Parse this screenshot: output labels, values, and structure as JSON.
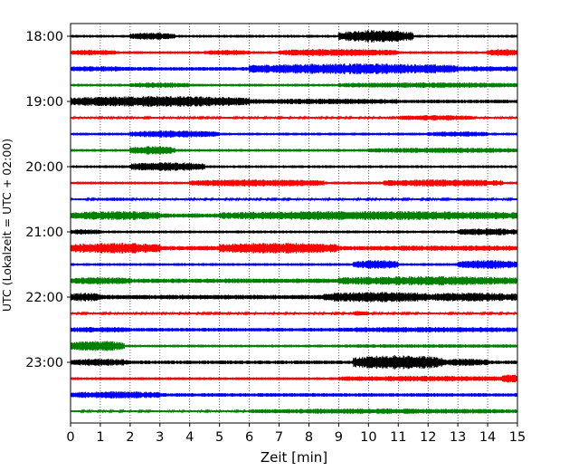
{
  "chart_data": {
    "type": "line",
    "xlabel": "Zeit  [min]",
    "ylabel": "UTC (Lokalzeit = UTC + 02:00)",
    "xlim": [
      0,
      15
    ],
    "x_ticks": [
      0,
      1,
      2,
      3,
      4,
      5,
      6,
      7,
      8,
      9,
      10,
      11,
      12,
      13,
      14,
      15
    ],
    "x_grid": true,
    "hour_labels": [
      {
        "label": "18:00",
        "trace": 0
      },
      {
        "label": "19:00",
        "trace": 4
      },
      {
        "label": "20:00",
        "trace": 8
      },
      {
        "label": "21:00",
        "trace": 12
      },
      {
        "label": "22:00",
        "trace": 16
      },
      {
        "label": "23:00",
        "trace": 20
      }
    ],
    "traces_per_hour": 4,
    "minutes_per_trace": 15,
    "series_colors": [
      "#000000",
      "#ff0000",
      "#0000ff",
      "#008000"
    ],
    "traces": [
      {
        "start": "18:00",
        "color": "#000000",
        "base": 1.5,
        "bursts": [
          [
            2,
            3.5,
            4
          ],
          [
            9,
            11.5,
            7
          ]
        ]
      },
      {
        "start": "18:15",
        "color": "#ff0000",
        "base": 1.5,
        "bursts": [
          [
            0,
            1.5,
            3
          ],
          [
            4.5,
            6,
            3
          ],
          [
            7,
            11,
            4
          ],
          [
            14,
            15,
            4
          ]
        ]
      },
      {
        "start": "18:30",
        "color": "#0000ff",
        "base": 2,
        "bursts": [
          [
            0,
            2,
            3
          ],
          [
            6,
            13,
            6
          ],
          [
            13,
            15,
            3
          ]
        ]
      },
      {
        "start": "18:45",
        "color": "#008000",
        "base": 1.5,
        "bursts": [
          [
            2,
            4,
            3
          ],
          [
            9,
            15,
            3
          ]
        ]
      },
      {
        "start": "19:00",
        "color": "#000000",
        "base": 2,
        "bursts": [
          [
            0,
            6,
            6
          ],
          [
            6,
            11,
            3
          ]
        ]
      },
      {
        "start": "19:15",
        "color": "#ff0000",
        "base": 1,
        "bursts": [
          [
            11,
            13.5,
            3
          ]
        ]
      },
      {
        "start": "19:30",
        "color": "#0000ff",
        "base": 1.5,
        "bursts": [
          [
            2,
            5,
            4
          ],
          [
            12,
            14,
            3
          ]
        ]
      },
      {
        "start": "19:45",
        "color": "#008000",
        "base": 1.5,
        "bursts": [
          [
            2,
            3.5,
            5
          ],
          [
            10,
            15,
            3
          ]
        ]
      },
      {
        "start": "20:00",
        "color": "#000000",
        "base": 1.5,
        "bursts": [
          [
            2,
            4.5,
            5
          ]
        ]
      },
      {
        "start": "20:15",
        "color": "#ff0000",
        "base": 1.5,
        "bursts": [
          [
            4,
            8.5,
            4
          ],
          [
            10.5,
            14.5,
            4
          ]
        ]
      },
      {
        "start": "20:30",
        "color": "#0000ff",
        "base": 1,
        "bursts": [
          [
            1,
            2,
            2
          ],
          [
            13,
            14,
            2
          ]
        ]
      },
      {
        "start": "20:45",
        "color": "#008000",
        "base": 2.5,
        "bursts": [
          [
            0,
            3,
            5
          ],
          [
            5,
            15,
            5
          ]
        ]
      },
      {
        "start": "21:00",
        "color": "#000000",
        "base": 1.5,
        "bursts": [
          [
            0,
            1,
            3
          ],
          [
            13,
            15,
            4
          ]
        ]
      },
      {
        "start": "21:15",
        "color": "#ff0000",
        "base": 2.5,
        "bursts": [
          [
            0,
            3,
            6
          ],
          [
            5,
            9,
            6
          ],
          [
            11,
            15,
            3
          ]
        ]
      },
      {
        "start": "21:30",
        "color": "#0000ff",
        "base": 1.5,
        "bursts": [
          [
            9.5,
            11,
            5
          ],
          [
            13,
            15,
            5
          ]
        ]
      },
      {
        "start": "21:45",
        "color": "#008000",
        "base": 2.5,
        "bursts": [
          [
            0,
            2,
            4
          ],
          [
            9,
            15,
            5
          ]
        ]
      },
      {
        "start": "22:00",
        "color": "#000000",
        "base": 2.5,
        "bursts": [
          [
            0,
            1,
            5
          ],
          [
            8.5,
            12,
            6
          ],
          [
            12,
            15,
            5
          ]
        ]
      },
      {
        "start": "22:15",
        "color": "#ff0000",
        "base": 1,
        "bursts": [
          [
            9.5,
            10,
            3
          ]
        ]
      },
      {
        "start": "22:30",
        "color": "#0000ff",
        "base": 2,
        "bursts": [
          [
            0,
            2,
            3
          ],
          [
            9,
            15,
            3
          ]
        ]
      },
      {
        "start": "22:45",
        "color": "#008000",
        "base": 1.5,
        "bursts": [
          [
            0,
            1.8,
            6
          ],
          [
            9,
            15,
            2
          ]
        ]
      },
      {
        "start": "23:00",
        "color": "#000000",
        "base": 2,
        "bursts": [
          [
            0,
            2,
            4
          ],
          [
            9.5,
            12.5,
            8
          ],
          [
            12.5,
            14,
            4
          ]
        ]
      },
      {
        "start": "23:15",
        "color": "#ff0000",
        "base": 1.5,
        "bursts": [
          [
            9,
            15,
            3
          ],
          [
            14.5,
            15,
            5
          ]
        ]
      },
      {
        "start": "23:30",
        "color": "#0000ff",
        "base": 2,
        "bursts": [
          [
            0,
            3,
            4
          ],
          [
            3,
            11,
            2
          ]
        ]
      },
      {
        "start": "23:45",
        "color": "#008000",
        "base": 1,
        "bursts": [
          [
            6,
            15,
            3
          ]
        ]
      }
    ]
  }
}
